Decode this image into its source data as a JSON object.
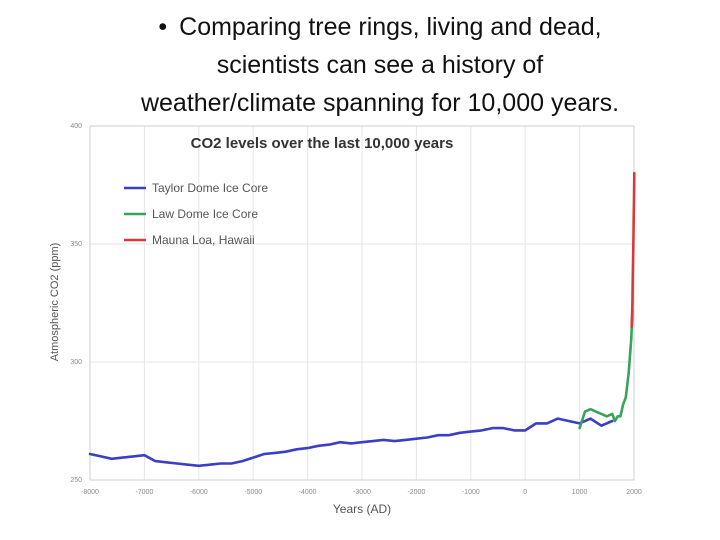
{
  "slide": {
    "bullet": "•",
    "text_lines": [
      "Comparing tree rings, living and dead,",
      "scientists can see a history of",
      "weather/climate spanning for 10,000 years."
    ]
  },
  "colors": {
    "series_taylor": "#3b3fc4",
    "series_law": "#3aa35b",
    "series_mauna": "#d63a3a",
    "grid": "#e6e6e6",
    "axis_text": "#8a8a8a"
  },
  "chart_data": {
    "type": "line",
    "title": "CO2 levels over the last 10,000 years",
    "xlabel": "Years (AD)",
    "ylabel": "Atmospheric CO2 (ppm)",
    "xlim": [
      -8000,
      2000
    ],
    "ylim": [
      250,
      400
    ],
    "x_ticks": [
      -8000,
      -7000,
      -6000,
      -5000,
      -4000,
      -3000,
      -2000,
      -1000,
      0,
      1000,
      2000
    ],
    "x_tick_labels": [
      "-8000",
      "-7000",
      "-6000",
      "-5000",
      "-4000",
      "-3000",
      "-2000",
      "-1000",
      "0",
      "1000",
      "2000"
    ],
    "y_ticks": [
      250,
      300,
      350,
      400
    ],
    "y_tick_labels": [
      "250",
      "300",
      "350",
      "400"
    ],
    "grid": true,
    "legend_position": "top-left",
    "series": [
      {
        "name": "Taylor Dome Ice Core",
        "x": [
          -8000,
          -7800,
          -7600,
          -7400,
          -7200,
          -7000,
          -6800,
          -6600,
          -6400,
          -6200,
          -6000,
          -5800,
          -5600,
          -5400,
          -5200,
          -5000,
          -4800,
          -4600,
          -4400,
          -4200,
          -4000,
          -3800,
          -3600,
          -3400,
          -3200,
          -3000,
          -2800,
          -2600,
          -2400,
          -2200,
          -2000,
          -1800,
          -1600,
          -1400,
          -1200,
          -1000,
          -800,
          -600,
          -400,
          -200,
          0,
          200,
          400,
          600,
          800,
          1000,
          1200,
          1400,
          1600
        ],
        "y": [
          261,
          260,
          259,
          259.5,
          260,
          260.5,
          258,
          257.5,
          257,
          256.5,
          256,
          256.5,
          257,
          257,
          258,
          259.5,
          261,
          261.5,
          262,
          263,
          263.5,
          264.5,
          265,
          266,
          265.5,
          266,
          266.5,
          267,
          266.5,
          267,
          267.5,
          268,
          269,
          269,
          270,
          270.5,
          271,
          272,
          272,
          271,
          271,
          274,
          274,
          276,
          275,
          274,
          276,
          273,
          275
        ]
      },
      {
        "name": "Law Dome Ice Core",
        "x": [
          1000,
          1100,
          1200,
          1300,
          1400,
          1500,
          1600,
          1650,
          1700,
          1750,
          1800,
          1850,
          1900,
          1950,
          1970
        ],
        "y": [
          272,
          279,
          280,
          279,
          278,
          277,
          278,
          275,
          277,
          277,
          282,
          285,
          295,
          310,
          322
        ]
      },
      {
        "name": "Mauna Loa, Hawaii",
        "x": [
          1958,
          1965,
          1970,
          1975,
          1980,
          1985,
          1990,
          1995,
          2000,
          2005
        ],
        "y": [
          315,
          320,
          325,
          331,
          339,
          346,
          354,
          361,
          369,
          380
        ]
      }
    ]
  }
}
